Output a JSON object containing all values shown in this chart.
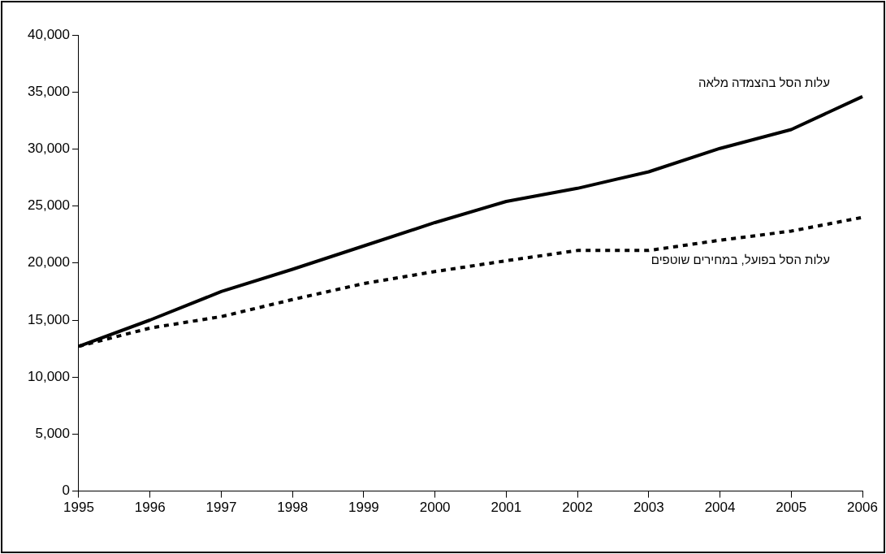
{
  "chart_data": {
    "type": "line",
    "categories": [
      "1995",
      "1996",
      "1997",
      "1998",
      "1999",
      "2000",
      "2001",
      "2002",
      "2003",
      "2004",
      "2005",
      "2006"
    ],
    "series": [
      {
        "name": "עלות הסל בהצמדה מלאה",
        "color": "#000000",
        "line_style": "solid",
        "values": [
          12700,
          15000,
          17500,
          19450,
          21500,
          23550,
          25400,
          26550,
          28000,
          30050,
          31700,
          34600
        ]
      },
      {
        "name": "עלות הסל בפועל, במחירים שוטפים",
        "color": "#000000",
        "line_style": "dotted",
        "values": [
          12700,
          14300,
          15300,
          16800,
          18200,
          19250,
          20200,
          21100,
          21100,
          22000,
          22800,
          24000
        ]
      }
    ],
    "ylim": [
      0,
      40000
    ],
    "yticks": [
      0,
      {
        "value": 5000,
        "label": "5,000"
      },
      {
        "value": 10000,
        "label": "10,000"
      },
      {
        "value": 15000,
        "label": "15,000"
      },
      {
        "value": 20000,
        "label": "20,000"
      },
      {
        "value": 25000,
        "label": "25,000"
      },
      {
        "value": 30000,
        "label": "30,000"
      },
      {
        "value": 35000,
        "label": "35,000"
      },
      {
        "value": 40000,
        "label": "40,000"
      }
    ],
    "grid": false,
    "legend": false,
    "marker": "none"
  }
}
